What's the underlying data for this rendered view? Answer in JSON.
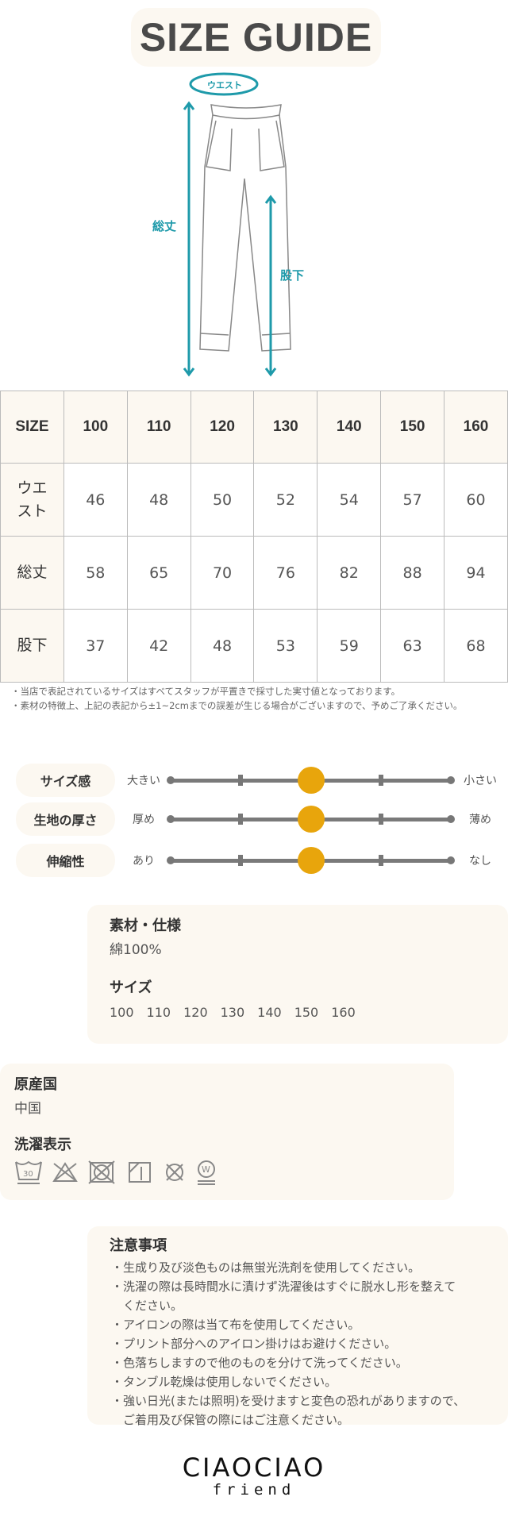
{
  "title": "SIZE GUIDE",
  "diagram": {
    "waist": "ウエスト",
    "total_length": "総丈",
    "inseam": "股下",
    "accent": "#1e9aaa"
  },
  "table": {
    "header": [
      "SIZE",
      "100",
      "110",
      "120",
      "130",
      "140",
      "150",
      "160"
    ],
    "rows": [
      {
        "label": "ウエ\nスト",
        "values": [
          "46",
          "48",
          "50",
          "52",
          "54",
          "57",
          "60"
        ]
      },
      {
        "label": "総丈",
        "values": [
          "58",
          "65",
          "70",
          "76",
          "82",
          "88",
          "94"
        ]
      },
      {
        "label": "股下",
        "values": [
          "37",
          "42",
          "48",
          "53",
          "59",
          "63",
          "68"
        ]
      }
    ]
  },
  "notes": [
    "・当店で表記されているサイズはすべてスタッフが平置きで採寸した実寸値となっております。",
    "・素材の特徴上、上記の表記から±1~2cmまでの誤差が生じる場合がございますので、予めご了承ください。"
  ],
  "scales": [
    {
      "label": "サイズ感",
      "left": "大きい",
      "right": "小さい",
      "level": 3,
      "steps": 5
    },
    {
      "label": "生地の厚さ",
      "left": "厚め",
      "right": "薄め",
      "level": 3,
      "steps": 5
    },
    {
      "label": "伸縮性",
      "left": "あり",
      "right": "なし",
      "level": 3,
      "steps": 5
    }
  ],
  "scale_color": "#e8a50c",
  "material": {
    "heading": "素材・仕様",
    "value": "綿100%",
    "size_heading": "サイズ",
    "sizes": "100　110　120　130　140　150　160"
  },
  "origin": {
    "heading": "原産国",
    "value": "中国",
    "care_heading": "洗濯表示",
    "care_icons": [
      "wash-30-icon",
      "no-bleach-icon",
      "no-tumble-dry-icon",
      "line-dry-shade-icon",
      "no-dry-clean-icon",
      "wet-clean-icon"
    ]
  },
  "cautions": {
    "heading": "注意事項",
    "items": [
      "・生成り及び淡色ものは無蛍光洗剤を使用してください。",
      "・洗濯の際は長時間水に漬けず洗濯後はすぐに脱水し形を整えて\n　ください。",
      "・アイロンの際は当て布を使用してください。",
      "・プリント部分へのアイロン掛けはお避けください。",
      "・色落ちしますので他のものを分けて洗ってください。",
      "・タンブル乾燥は使用しないでください。",
      "・強い日光(または照明)を受けますと変色の恐れがありますので、\n　ご着用及び保管の際にはご注意ください。"
    ]
  },
  "brand": {
    "name": "CIAOCIAO",
    "sub": "friend"
  }
}
